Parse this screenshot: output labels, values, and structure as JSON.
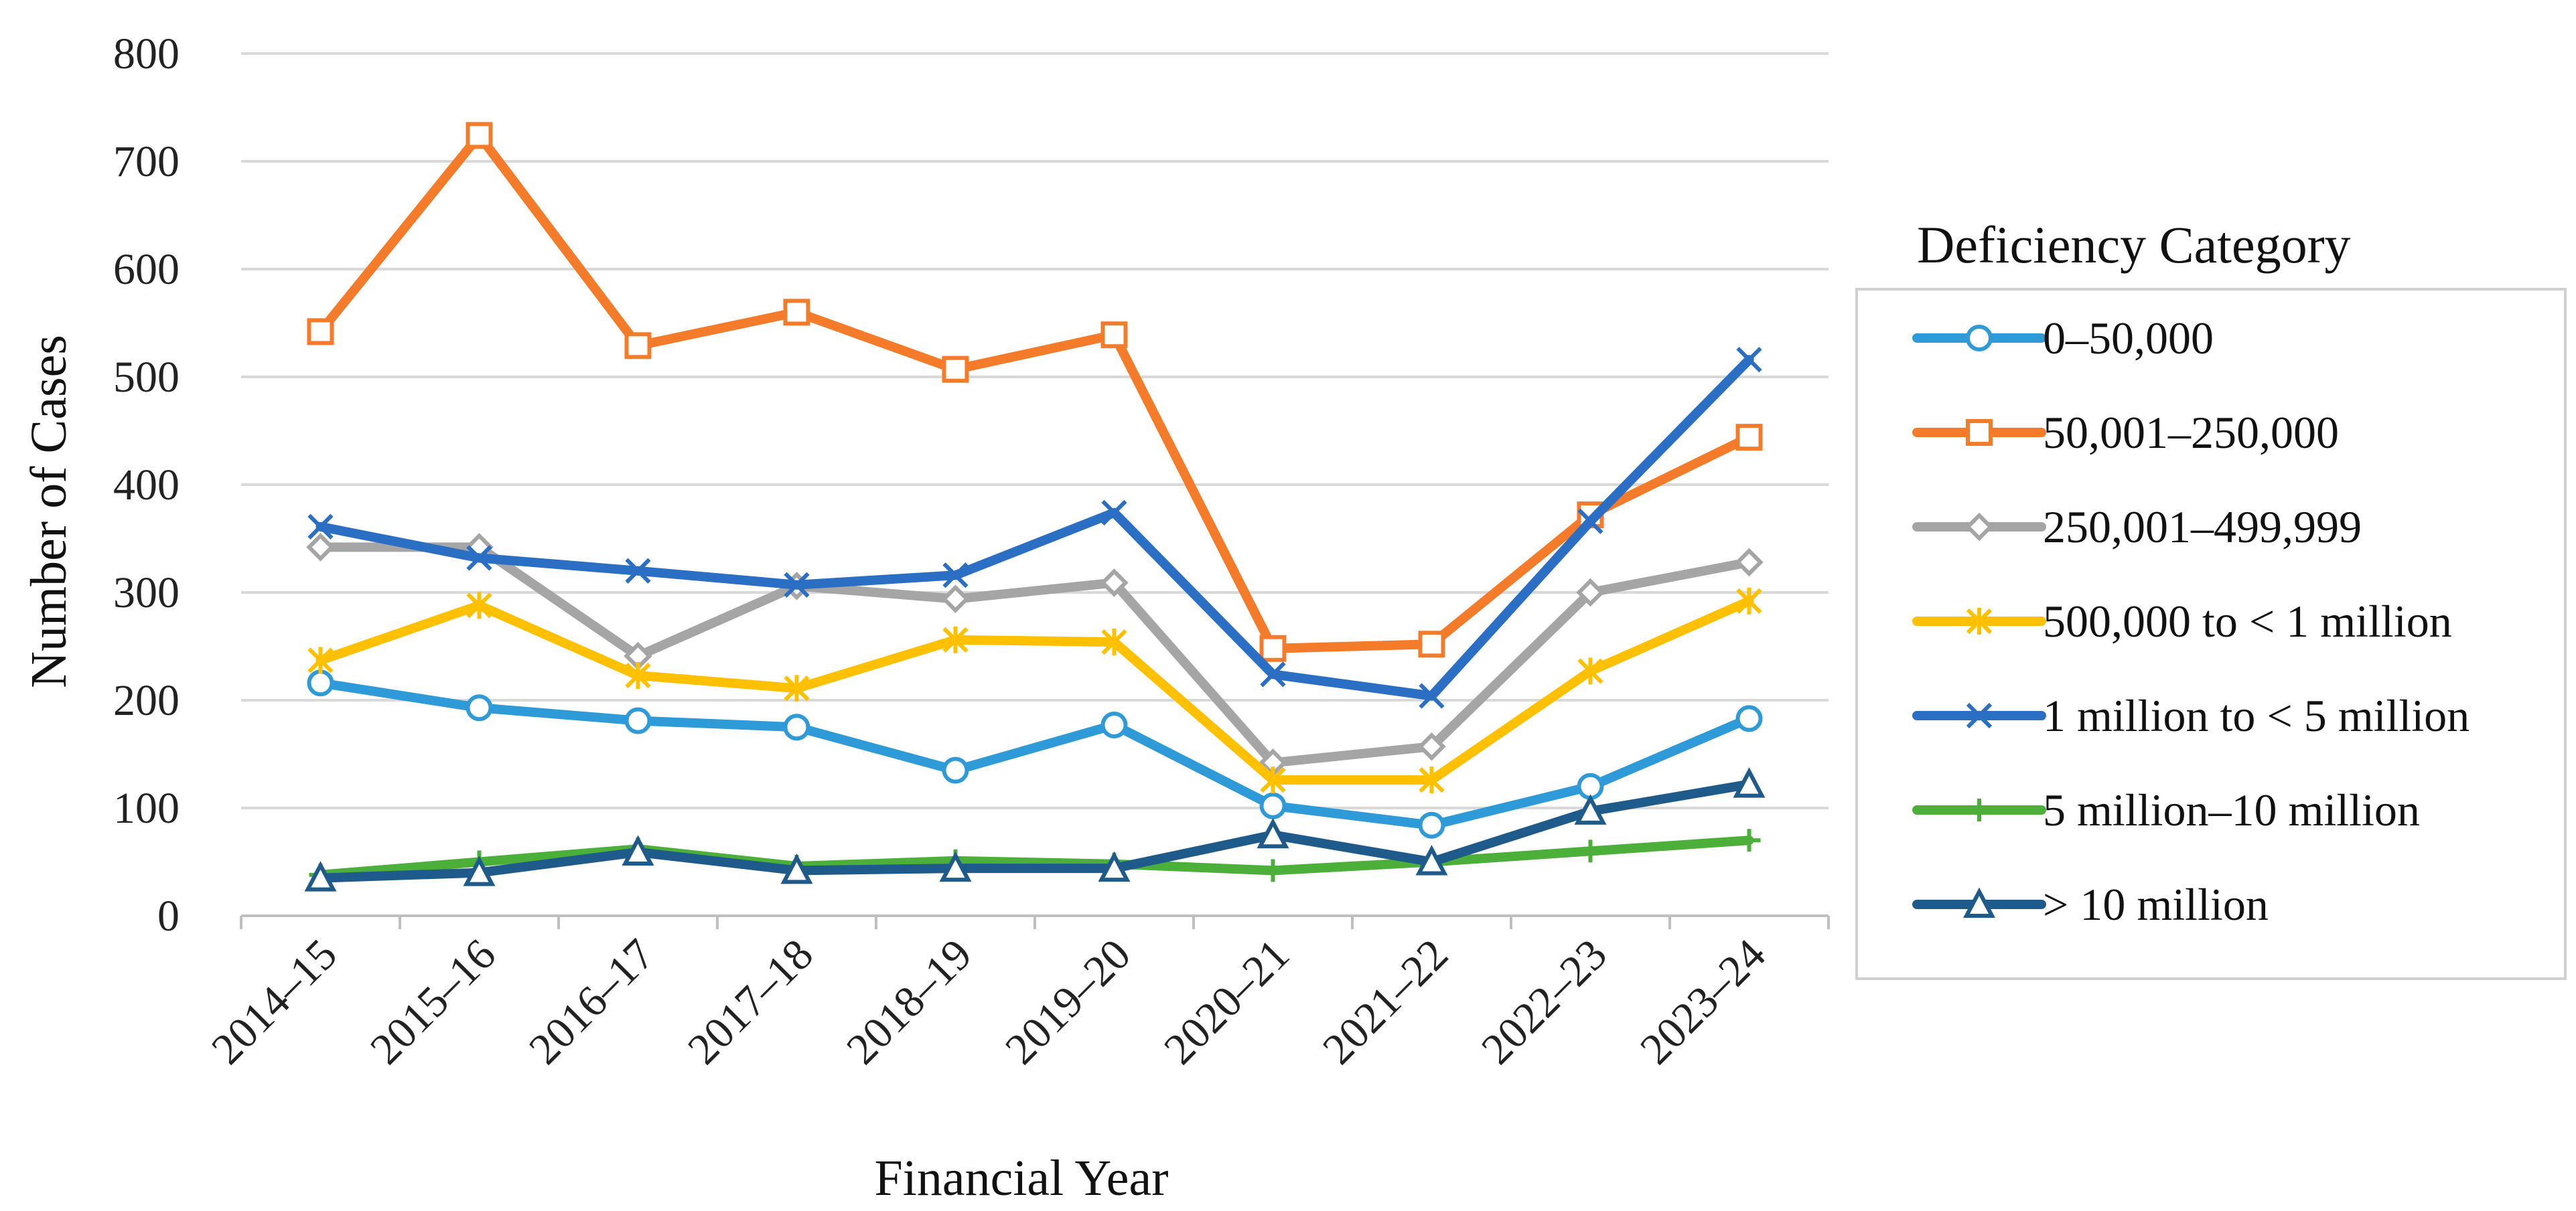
{
  "chart_data": {
    "type": "line",
    "title": "",
    "xlabel": "Financial Year",
    "ylabel": "Number of Cases",
    "ylim": [
      0,
      800
    ],
    "yticks": [
      0,
      100,
      200,
      300,
      400,
      500,
      600,
      700,
      800
    ],
    "grid": true,
    "legend_title": "Deficiency Category",
    "legend_position": "right",
    "categories": [
      "2014–15",
      "2015–16",
      "2016–17",
      "2017–18",
      "2018–19",
      "2019–20",
      "2020–21",
      "2021–22",
      "2022–23",
      "2023–24"
    ],
    "series": [
      {
        "name": "0–50,000",
        "color": "#2E9BD8",
        "marker": "circle",
        "values": [
          216,
          193,
          181,
          175,
          135,
          177,
          102,
          84,
          120,
          183
        ]
      },
      {
        "name": "50,001–250,000",
        "color": "#F47B2A",
        "marker": "square",
        "values": [
          542,
          724,
          529,
          560,
          507,
          539,
          248,
          252,
          372,
          444
        ]
      },
      {
        "name": "250,001–499,999",
        "color": "#A5A5A5",
        "marker": "diamond",
        "values": [
          342,
          342,
          241,
          306,
          294,
          309,
          142,
          157,
          300,
          328
        ]
      },
      {
        "name": "500,000 to < 1 million",
        "color": "#FFC000",
        "marker": "star",
        "values": [
          237,
          288,
          223,
          211,
          256,
          254,
          126,
          126,
          227,
          292
        ]
      },
      {
        "name": "1 million to < 5 million",
        "color": "#2A6FC4",
        "marker": "x",
        "values": [
          361,
          332,
          320,
          307,
          316,
          374,
          224,
          204,
          366,
          516
        ]
      },
      {
        "name": "5 million–10 million",
        "color": "#4CAF3A",
        "marker": "plus",
        "values": [
          38,
          50,
          62,
          46,
          51,
          48,
          42,
          50,
          60,
          70
        ]
      },
      {
        "name": "> 10 million",
        "color": "#1F5B8A",
        "marker": "triangle",
        "values": [
          35,
          40,
          59,
          42,
          44,
          44,
          75,
          50,
          97,
          122
        ]
      }
    ]
  }
}
